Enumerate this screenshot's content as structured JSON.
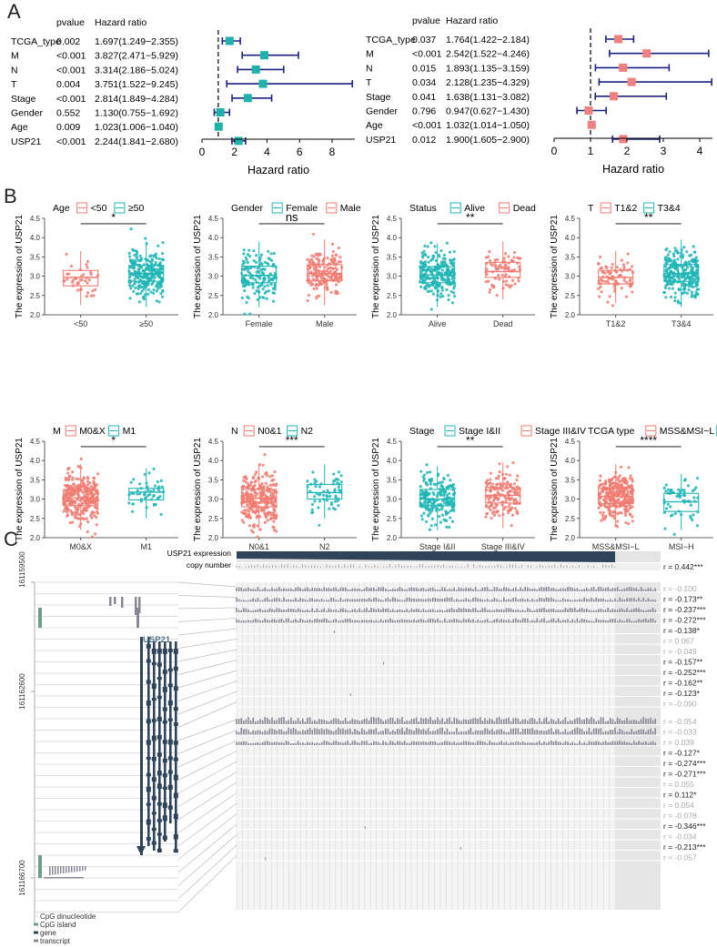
{
  "panels": {
    "a": "A",
    "b": "B",
    "c": "C"
  },
  "colors": {
    "cyan": "#20B2AA",
    "salmon": "#F08080",
    "navy": "#1A237E",
    "boxCyan": "#21B5B5",
    "boxSalmon": "#F07B72",
    "gene": "#2F4459",
    "island": "#6E9E89",
    "bar": "#8A8896",
    "grid": "#D9D9D9"
  },
  "chart_data": [
    {
      "id": "forest-univariate",
      "type": "forest",
      "title": "",
      "xlabel": "Hazard ratio",
      "header_p": "pvalue",
      "header_hr": "Hazard ratio",
      "xlim": [
        0,
        9.4
      ],
      "xticks": [
        "0",
        "2",
        "4",
        "6",
        "8"
      ],
      "ref_line": 1,
      "marker_color": "cyan",
      "rows": [
        {
          "name": "TCGA_type",
          "p": "0.002",
          "hr_text": "1.697(1.249−2.355)",
          "hr": 1.697,
          "lo": 1.249,
          "hi": 2.355
        },
        {
          "name": "M",
          "p": "<0.001",
          "hr_text": "3.827(2.471−5.929)",
          "hr": 3.827,
          "lo": 2.471,
          "hi": 5.929
        },
        {
          "name": "N",
          "p": "<0.001",
          "hr_text": "3.314(2.186−5.024)",
          "hr": 3.314,
          "lo": 2.186,
          "hi": 5.024
        },
        {
          "name": "T",
          "p": "0.004",
          "hr_text": "3.751(1.522−9.245)",
          "hr": 3.751,
          "lo": 1.522,
          "hi": 9.245
        },
        {
          "name": "Stage",
          "p": "<0.001",
          "hr_text": "2.814(1.849−4.284)",
          "hr": 2.814,
          "lo": 1.849,
          "hi": 4.284
        },
        {
          "name": "Gender",
          "p": "0.552",
          "hr_text": "1.130(0.755−1.692)",
          "hr": 1.13,
          "lo": 0.755,
          "hi": 1.692
        },
        {
          "name": "Age",
          "p": "0.009",
          "hr_text": "1.023(1.006−1.040)",
          "hr": 1.023,
          "lo": 1.006,
          "hi": 1.04
        },
        {
          "name": "USP21",
          "p": "<0.001",
          "hr_text": "2.244(1.841−2.680)",
          "hr": 2.244,
          "lo": 1.841,
          "hi": 2.68
        }
      ]
    },
    {
      "id": "forest-multivariate",
      "type": "forest",
      "title": "",
      "xlabel": "Hazard ratio",
      "header_p": "pvalue",
      "header_hr": "Hazard ratio",
      "xlim": [
        0,
        4.35
      ],
      "xticks": [
        "0",
        "1",
        "2",
        "3",
        "4"
      ],
      "ref_line": 1,
      "marker_color": "salmon",
      "rows": [
        {
          "name": "TCGA_type",
          "p": "0.037",
          "hr_text": "1.764(1.422−2.184)",
          "hr": 1.764,
          "lo": 1.422,
          "hi": 2.184
        },
        {
          "name": "M",
          "p": "<0.001",
          "hr_text": "2.542(1.522−4.246)",
          "hr": 2.542,
          "lo": 1.522,
          "hi": 4.246
        },
        {
          "name": "N",
          "p": "0.015",
          "hr_text": "1.893(1.135−3.159)",
          "hr": 1.893,
          "lo": 1.135,
          "hi": 3.159
        },
        {
          "name": "T",
          "p": "0.034",
          "hr_text": "2.128(1.235−4.329)",
          "hr": 2.128,
          "lo": 1.235,
          "hi": 4.329
        },
        {
          "name": "Stage",
          "p": "0.041",
          "hr_text": "1.638(1.131−3.082)",
          "hr": 1.638,
          "lo": 1.131,
          "hi": 3.082
        },
        {
          "name": "Gender",
          "p": "0.796",
          "hr_text": "0.947(0.627−1.430)",
          "hr": 0.947,
          "lo": 0.627,
          "hi": 1.43
        },
        {
          "name": "Age",
          "p": "<0.001",
          "hr_text": "1.032(1.014−1.050)",
          "hr": 1.032,
          "lo": 1.014,
          "hi": 1.05
        },
        {
          "name": "USP21",
          "p": "0.012",
          "hr_text": "1.900(1.605−2.900)",
          "hr": 1.9,
          "lo": 1.605,
          "hi": 2.9
        }
      ]
    },
    {
      "id": "boxplots",
      "type": "box",
      "ylabel": "The expression of USP21",
      "ylim": [
        2.0,
        4.5
      ],
      "yticks": [
        "2.0",
        "2.5",
        "3.0",
        "3.5",
        "4.0",
        "4.5"
      ],
      "plots": [
        {
          "title": "Age",
          "sig": "*",
          "groups": [
            {
              "name": "<50",
              "color": "salmon",
              "q1": 2.75,
              "med": 2.97,
              "q3": 3.15,
              "lo": 2.25,
              "hi": 3.65,
              "n": 40
            },
            {
              "name": "≥50",
              "color": "cyan",
              "q1": 2.87,
              "med": 3.07,
              "q3": 3.28,
              "lo": 2.2,
              "hi": 3.9,
              "n": 260
            }
          ]
        },
        {
          "title": "Gender",
          "sig": "ns",
          "groups": [
            {
              "name": "Female",
              "color": "cyan",
              "q1": 2.83,
              "med": 3.02,
              "q3": 3.26,
              "lo": 2.2,
              "hi": 3.9,
              "n": 150
            },
            {
              "name": "Male",
              "color": "salmon",
              "q1": 2.88,
              "med": 3.07,
              "q3": 3.3,
              "lo": 2.25,
              "hi": 3.95,
              "n": 170
            }
          ]
        },
        {
          "title": "Status",
          "sig": "**",
          "groups": [
            {
              "name": "Alive",
              "color": "cyan",
              "q1": 2.83,
              "med": 3.03,
              "q3": 3.25,
              "lo": 2.2,
              "hi": 3.85,
              "n": 240
            },
            {
              "name": "Dead",
              "color": "salmon",
              "q1": 2.97,
              "med": 3.12,
              "q3": 3.36,
              "lo": 2.4,
              "hi": 3.9,
              "n": 80
            }
          ]
        },
        {
          "title": "T",
          "sig": "**",
          "groups": [
            {
              "name": "T1&2",
              "color": "salmon",
              "q1": 2.8,
              "med": 2.97,
              "q3": 3.15,
              "lo": 2.3,
              "hi": 3.65,
              "n": 80
            },
            {
              "name": "T3&4",
              "color": "cyan",
              "q1": 2.87,
              "med": 3.07,
              "q3": 3.3,
              "lo": 2.2,
              "hi": 3.95,
              "n": 260
            }
          ]
        },
        {
          "title": "M",
          "sig": "*",
          "groups": [
            {
              "name": "M0&X",
              "color": "salmon",
              "q1": 2.83,
              "med": 3.03,
              "q3": 3.25,
              "lo": 2.2,
              "hi": 3.9,
              "n": 280
            },
            {
              "name": "M1",
              "color": "cyan",
              "q1": 2.98,
              "med": 3.18,
              "q3": 3.28,
              "lo": 2.5,
              "hi": 3.8,
              "n": 50
            }
          ]
        },
        {
          "title": "N",
          "sig": "***",
          "groups": [
            {
              "name": "N0&1",
              "color": "salmon",
              "q1": 2.8,
              "med": 3.02,
              "q3": 3.25,
              "lo": 2.2,
              "hi": 3.9,
              "n": 280
            },
            {
              "name": "N2",
              "color": "cyan",
              "q1": 3.0,
              "med": 3.17,
              "q3": 3.38,
              "lo": 2.5,
              "hi": 3.9,
              "n": 60
            }
          ]
        },
        {
          "title": "Stage",
          "sig": "**",
          "groups": [
            {
              "name": "Stage I&II",
              "color": "cyan",
              "q1": 2.83,
              "med": 3.0,
              "q3": 3.25,
              "lo": 2.2,
              "hi": 3.85,
              "n": 200
            },
            {
              "name": "Stage III&IV",
              "color": "salmon",
              "q1": 2.9,
              "med": 3.1,
              "q3": 3.3,
              "lo": 2.25,
              "hi": 3.95,
              "n": 160
            }
          ]
        },
        {
          "title": "TCGA type",
          "sig": "****",
          "groups": [
            {
              "name": "MSS&MSI−L",
              "color": "salmon",
              "q1": 2.88,
              "med": 3.07,
              "q3": 3.28,
              "lo": 2.3,
              "hi": 3.9,
              "n": 290
            },
            {
              "name": "MSI−H",
              "color": "cyan",
              "q1": 2.68,
              "med": 2.93,
              "q3": 3.15,
              "lo": 2.2,
              "hi": 3.65,
              "n": 60
            }
          ]
        }
      ]
    },
    {
      "id": "methylation",
      "type": "heatmap",
      "expression_label": "USP21 expression",
      "copy_label": "copy number",
      "copy_r": "r = 0.442***",
      "gene_label": "USP21",
      "axis_ticks": [
        "161159500",
        "161162600",
        "161166700"
      ],
      "rows": [
        {
          "r": "r = -0.100",
          "sig": false,
          "g": 1
        },
        {
          "r": "r = -0.173**",
          "sig": true,
          "g": 1
        },
        {
          "r": "r = -0.237***",
          "sig": true,
          "g": 1
        },
        {
          "r": "r = -0.272***",
          "sig": true,
          "g": 1
        },
        {
          "r": "r = -0.138*",
          "sig": true,
          "g": 0
        },
        {
          "r": "r = 0.067",
          "sig": false,
          "g": 0
        },
        {
          "r": "r = -0.049",
          "sig": false,
          "g": 0
        },
        {
          "r": "r = -0.157**",
          "sig": true,
          "g": 0
        },
        {
          "r": "r = -0.252***",
          "sig": true,
          "g": 0
        },
        {
          "r": "r = -0.162**",
          "sig": true,
          "g": 0
        },
        {
          "r": "r = -0.123*",
          "sig": true,
          "g": 0
        },
        {
          "r": "r = -0.090",
          "sig": false,
          "g": 0
        },
        {
          "r": "r = -0.054",
          "sig": false,
          "g": 2
        },
        {
          "r": "r = -0.033",
          "sig": false,
          "g": 2
        },
        {
          "r": "r = 0.039",
          "sig": false,
          "g": 1
        },
        {
          "r": "r = -0.127*",
          "sig": true,
          "g": 0
        },
        {
          "r": "r = -0.274***",
          "sig": true,
          "g": 0
        },
        {
          "r": "r = -0.271***",
          "sig": true,
          "g": 0
        },
        {
          "r": "r = 0.055",
          "sig": false,
          "g": 0
        },
        {
          "r": "r = 0.112*",
          "sig": true,
          "g": 0
        },
        {
          "r": "r = 0.054",
          "sig": false,
          "g": 0
        },
        {
          "r": "r = -0.078",
          "sig": false,
          "g": 0
        },
        {
          "r": "r = -0.346***",
          "sig": true,
          "g": 0
        },
        {
          "r": "r = -0.034",
          "sig": false,
          "g": 0
        },
        {
          "r": "r = -0.213***",
          "sig": true,
          "g": 0
        },
        {
          "r": "r = -0.057",
          "sig": false,
          "g": 0
        }
      ],
      "legend": [
        {
          "label": "CpG dinucleotide",
          "color": "grid"
        },
        {
          "label": "CpG island",
          "color": "island"
        },
        {
          "label": "gene",
          "color": "gene"
        },
        {
          "label": "transcript",
          "color": "bar"
        }
      ]
    }
  ]
}
